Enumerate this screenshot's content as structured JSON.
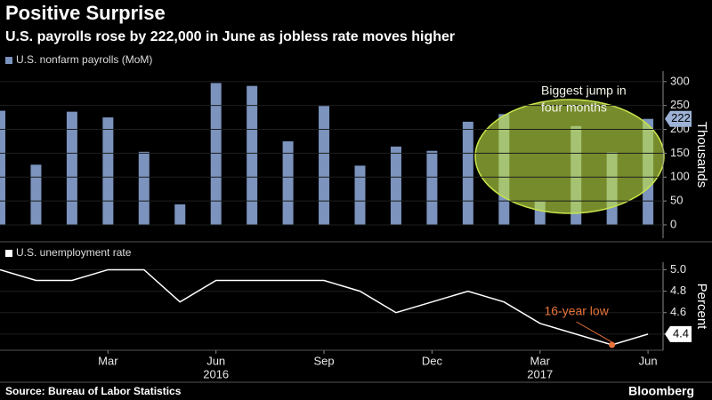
{
  "title": "Positive Surprise",
  "subtitle": "U.S. payrolls rose by 222,000 in June as jobless rate moves higher",
  "source": "Source: Bureau of Labor Statistics",
  "brand": "Bloomberg",
  "chart_data": [
    {
      "type": "bar",
      "categories": [
        null,
        null,
        null,
        "Mar",
        null,
        null,
        "Jun",
        null,
        null,
        "Sep",
        null,
        null,
        "Dec",
        null,
        null,
        "Mar",
        null,
        null,
        "Jun"
      ],
      "years": [
        null,
        null,
        null,
        null,
        null,
        null,
        "2016",
        null,
        null,
        null,
        null,
        null,
        null,
        null,
        null,
        "2017",
        null,
        null,
        null
      ],
      "series": [
        {
          "name": "U.S. nonfarm payrolls (MoM)",
          "color": "#7b93bd",
          "values": [
            239,
            126,
            237,
            225,
            153,
            43,
            297,
            291,
            175,
            249,
            124,
            164,
            155,
            216,
            232,
            50,
            207,
            152,
            222
          ]
        }
      ],
      "ylim": [
        -28,
        322
      ],
      "yticks": [
        0,
        50,
        100,
        150,
        200,
        250,
        300
      ],
      "ylabel": "Thousands",
      "grid": true,
      "annotation": [
        "Biggest jump in",
        "four months"
      ]
    },
    {
      "type": "line",
      "series": [
        {
          "name": "U.S. unemployment rate",
          "color": "#ffffff",
          "values": [
            5.0,
            4.9,
            4.9,
            5.0,
            5.0,
            4.7,
            4.9,
            4.9,
            4.9,
            4.9,
            4.8,
            4.6,
            4.7,
            4.8,
            4.7,
            4.5,
            4.4,
            4.3,
            4.4
          ]
        }
      ],
      "ylim": [
        4.25,
        5.07
      ],
      "yticks": [
        {
          "value": 5,
          "label": "5.0"
        },
        4.8,
        4.6,
        4.4
      ],
      "ylabel": "Percent",
      "grid": true,
      "annotation": "16-year low"
    }
  ]
}
